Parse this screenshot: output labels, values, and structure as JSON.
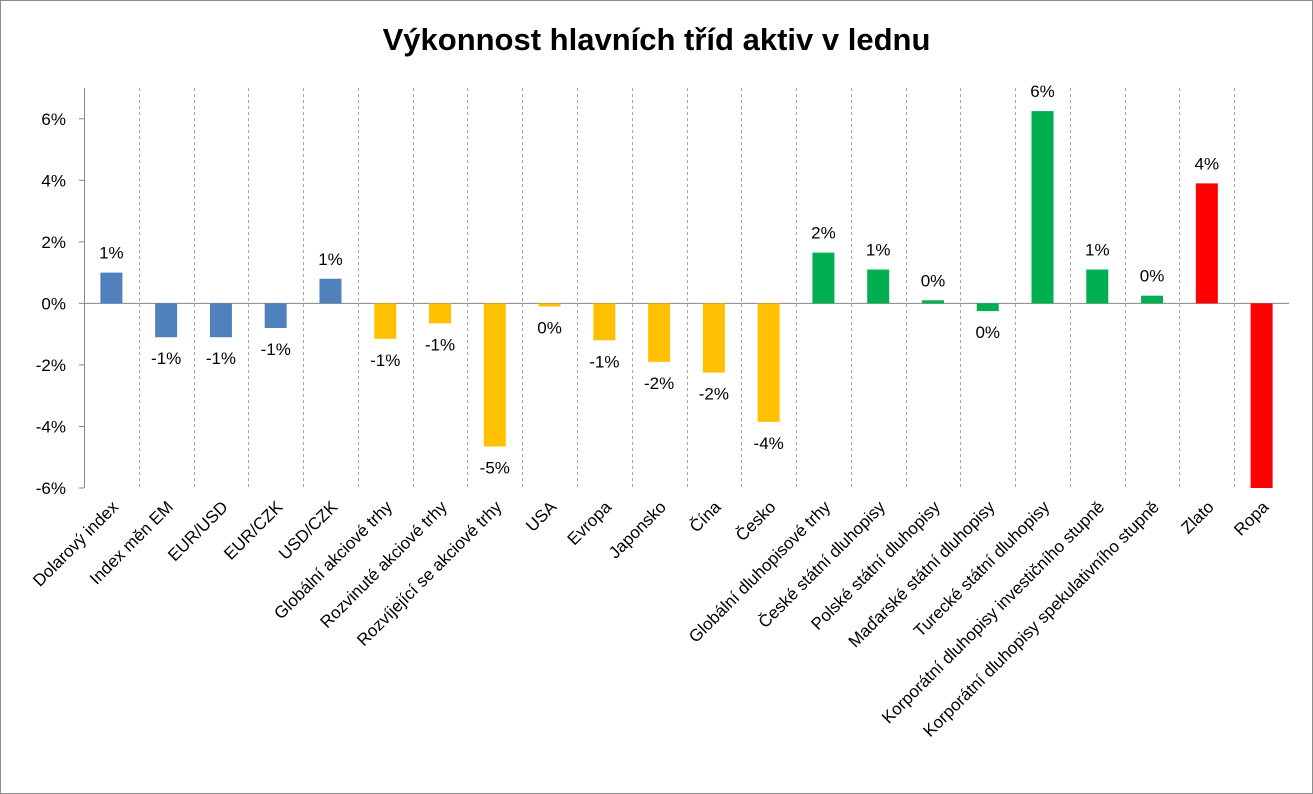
{
  "chart_data": {
    "type": "bar",
    "title": "Výkonnost hlavních tříd aktiv v lednu",
    "xlabel": "",
    "ylabel": "",
    "ylim": [
      -6,
      7
    ],
    "yticks": [
      "-6%",
      "-4%",
      "-2%",
      "0%",
      "2%",
      "4%",
      "6%"
    ],
    "ytick_values": [
      -6,
      -4,
      -2,
      0,
      2,
      4,
      6
    ],
    "grid": "vertical category separators",
    "legend": "none",
    "categories": [
      "Dolarový index",
      "Index měn EM",
      "EUR/USD",
      "EUR/CZK",
      "USD/CZK",
      "Globální akciové trhy",
      "Rozvinuté akciové trhy",
      "Rozvíjející se akciové trhy",
      "USA",
      "Evropa",
      "Japonsko",
      "Čína",
      "Česko",
      "Globální dluhopisové trhy",
      "České státní dluhopisy",
      "Polské státní dluhopisy",
      "Maďarské státní dluhopisy",
      "Turecké státní dluhopisy",
      "Korporátní dluhopisy investičního stupně",
      "Korporátní dluhopisy spekulativního stupně",
      "Zlato",
      "Ropa"
    ],
    "values": [
      1.0,
      -1.1,
      -1.1,
      -0.8,
      0.8,
      -1.15,
      -0.65,
      -4.65,
      -0.1,
      -1.2,
      -1.9,
      -2.25,
      -3.85,
      1.65,
      1.1,
      0.1,
      -0.25,
      6.25,
      1.1,
      0.25,
      3.9,
      -6.0
    ],
    "data_labels": [
      "1%",
      "-1%",
      "-1%",
      "-1%",
      "1%",
      "-1%",
      "-1%",
      "-5%",
      "0%",
      "-1%",
      "-2%",
      "-2%",
      "-4%",
      "2%",
      "1%",
      "0%",
      "0%",
      "6%",
      "1%",
      "0%",
      "4%",
      ""
    ],
    "bar_colors": [
      "#4f81bd",
      "#4f81bd",
      "#4f81bd",
      "#4f81bd",
      "#4f81bd",
      "#ffc000",
      "#ffc000",
      "#ffc000",
      "#ffc000",
      "#ffc000",
      "#ffc000",
      "#ffc000",
      "#ffc000",
      "#00b050",
      "#00b050",
      "#00b050",
      "#00b050",
      "#00b050",
      "#00b050",
      "#00b050",
      "#ff0000",
      "#ff0000"
    ]
  }
}
